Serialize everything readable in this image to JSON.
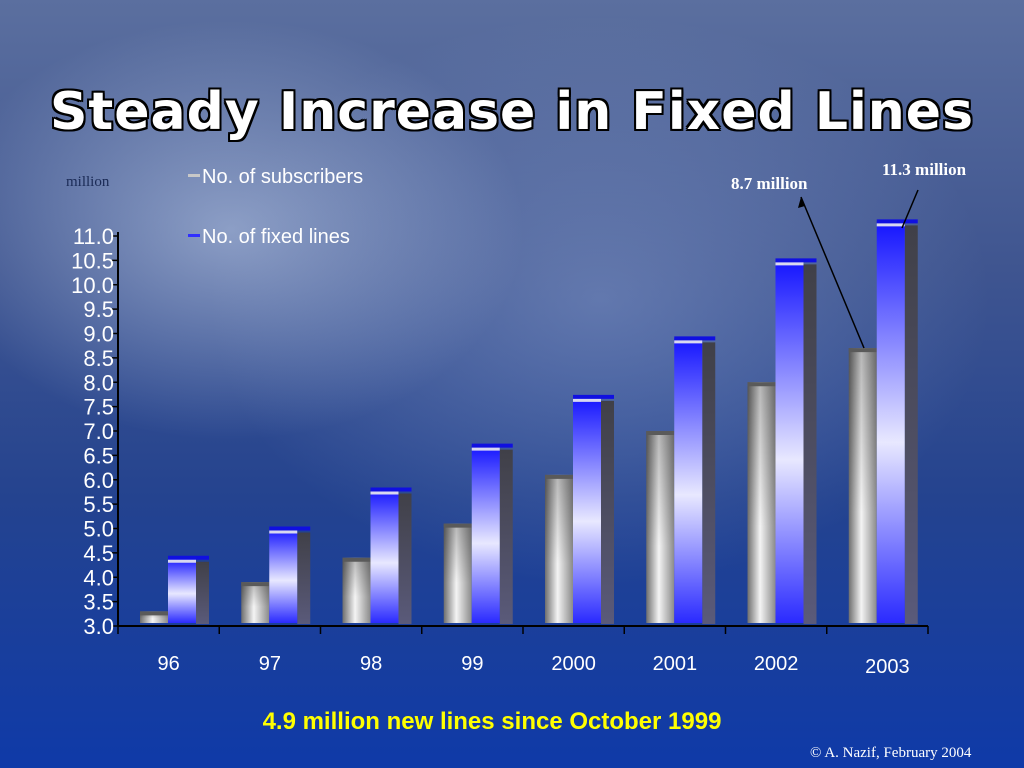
{
  "title": "Steady Increase in Fixed Lines",
  "unit_label": "million",
  "legend": [
    {
      "name": "No. of subscribers",
      "marker": "-"
    },
    {
      "name": "No. of fixed lines",
      "marker": "-"
    }
  ],
  "callouts": [
    {
      "text": "8.7 million"
    },
    {
      "text": "11.3 million"
    }
  ],
  "footer": "4.9 million new lines since October 1999",
  "credit": "© A. Nazif, February 2004",
  "colors": {
    "subscribers": "#b8b8b8",
    "fixed_lines": "#2828ff",
    "axis": "#000000"
  },
  "chart_data": {
    "type": "bar",
    "categories": [
      "96",
      "97",
      "98",
      "99",
      "2000",
      "2001",
      "2002",
      "2003"
    ],
    "series": [
      {
        "name": "No. of subscribers",
        "values": [
          3.3,
          3.9,
          4.4,
          5.1,
          6.1,
          7.0,
          8.0,
          8.7
        ]
      },
      {
        "name": "No. of fixed lines",
        "values": [
          4.4,
          5.0,
          5.8,
          6.7,
          7.7,
          8.9,
          10.5,
          11.3
        ]
      }
    ],
    "ylim": [
      3.0,
      11.0
    ],
    "yticks": [
      "11.0",
      "10.5",
      "10.0",
      "9.5",
      "9.0",
      "8.5",
      "8.0",
      "7.5",
      "7.0",
      "6.5",
      "6.0",
      "5.5",
      "5.0",
      "4.5",
      "4.0",
      "3.5",
      "3.0"
    ],
    "legend_position": "top-left",
    "grid": false
  }
}
